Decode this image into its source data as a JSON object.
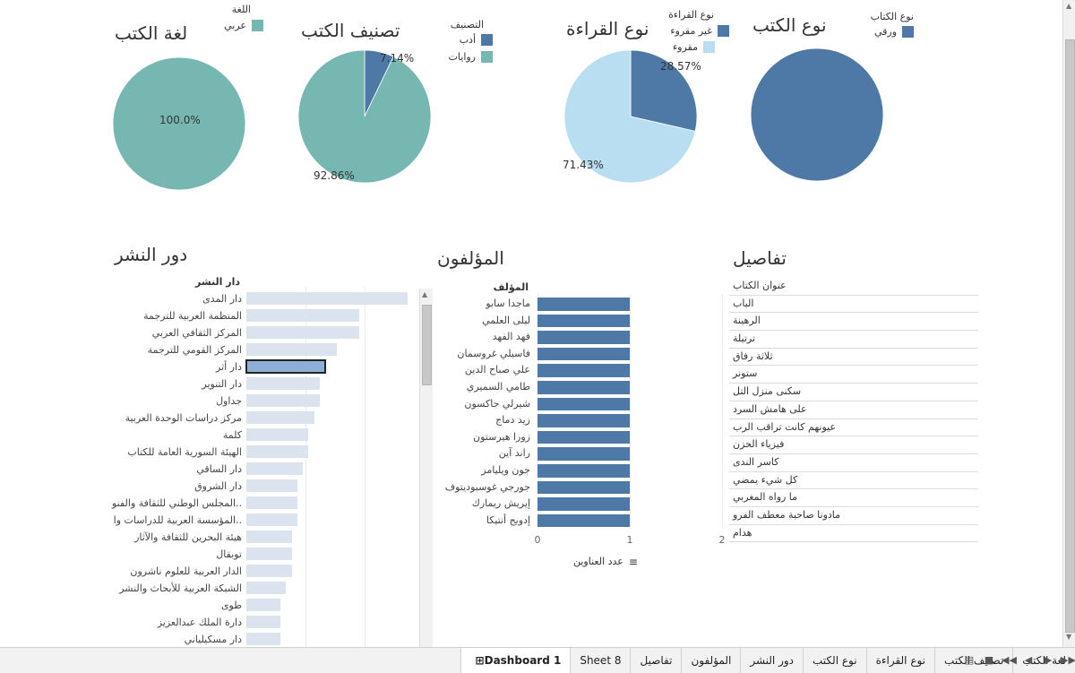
{
  "pies": [
    {
      "title": "لغة الكتب",
      "legend_title": "اللغة",
      "slices": [
        {
          "name": "عربي",
          "value": 100.0,
          "color": "#76b7b2",
          "label": "100.0%"
        }
      ]
    },
    {
      "title": "تصنيف الكتب",
      "legend_title": "التصنيف",
      "slices": [
        {
          "name": "أدب",
          "value": 7.14,
          "color": "#4e79a7",
          "label": "7.14%"
        },
        {
          "name": "روايات",
          "value": 92.86,
          "color": "#76b7b2",
          "label": "92.86%"
        }
      ]
    },
    {
      "title": "نوع القراءة",
      "legend_title": "نوع القراءة",
      "slices": [
        {
          "name": "غير مقروء",
          "value": 28.57,
          "color": "#4e79a7",
          "label": "28.57%"
        },
        {
          "name": "مقروء",
          "value": 71.43,
          "color": "#b9ddf1",
          "label": "71.43%"
        }
      ]
    },
    {
      "title": "نوع الكتب",
      "legend_title": "نوع الكتاب",
      "slices": [
        {
          "name": "ورقي",
          "value": 100.0,
          "color": "#4e79a7",
          "label": ""
        }
      ]
    }
  ],
  "publishers": {
    "title": "دور النشر",
    "header": "دار النشر",
    "items": [
      {
        "name": "دار المدى",
        "value": 5.7
      },
      {
        "name": "المنظمة العربية للترجمة",
        "value": 4.0
      },
      {
        "name": "المركز الثقافي العربي",
        "value": 4.0
      },
      {
        "name": "المركز القومي للترجمة",
        "value": 3.2
      },
      {
        "name": "دار أثر",
        "value": 2.8
      },
      {
        "name": "دار التنوير",
        "value": 2.6
      },
      {
        "name": "جداول",
        "value": 2.6
      },
      {
        "name": "مركز دراسات الوحدة العربية",
        "value": 2.4
      },
      {
        "name": "كلمة",
        "value": 2.2
      },
      {
        "name": "الهيئة السورية العامة للكتاب",
        "value": 2.2
      },
      {
        "name": "دار الساقي",
        "value": 2.0
      },
      {
        "name": "دار الشروق",
        "value": 1.8
      },
      {
        "name": "المجلس الوطني للثقافة والفنو..",
        "value": 1.8
      },
      {
        "name": "المؤسسة العربية للدراسات وا..",
        "value": 1.8
      },
      {
        "name": "هيئة البحرين للثقافة والآثار",
        "value": 1.6
      },
      {
        "name": "توبقال",
        "value": 1.6
      },
      {
        "name": "الدار العربية للعلوم ناشرون",
        "value": 1.6
      },
      {
        "name": "الشبكة العربية للأبحاث والنشر",
        "value": 1.4
      },
      {
        "name": "طوى",
        "value": 1.2
      },
      {
        "name": "دارة الملك عبدالعزيز",
        "value": 1.2
      },
      {
        "name": "دار مسكيلياني",
        "value": 1.2
      }
    ],
    "max": 5.7,
    "selected": "دار أثر"
  },
  "authors": {
    "title": "المؤلفون",
    "header": "المؤلف",
    "xlabel": "عدد العناوين",
    "ticks": [
      "0",
      "1",
      "2"
    ],
    "xmax": 2,
    "items": [
      {
        "name": "ماجدا سابو",
        "value": 1
      },
      {
        "name": "ليلى العلمي",
        "value": 1
      },
      {
        "name": "فهد الفهد",
        "value": 1
      },
      {
        "name": "فاسيلي غروسمان",
        "value": 1
      },
      {
        "name": "علي صباح الدين",
        "value": 1
      },
      {
        "name": "طامي السميري",
        "value": 1
      },
      {
        "name": "شيرلي جاكسون",
        "value": 1
      },
      {
        "name": "زيد دماج",
        "value": 1
      },
      {
        "name": "زورا هيرستون",
        "value": 1
      },
      {
        "name": "راند آين",
        "value": 1
      },
      {
        "name": "جون ويليامز",
        "value": 1
      },
      {
        "name": "جورجي غوسبوديتوف",
        "value": 1
      },
      {
        "name": "إيريش ريمارك",
        "value": 1
      },
      {
        "name": "إدويج أنتيكا",
        "value": 1
      }
    ]
  },
  "details": {
    "title": "تفاصيل",
    "header": "عنوان الكتاب",
    "items": [
      "الباب",
      "الرهينة",
      "ترتيلة",
      "ثلاثة رفاق",
      "ستونر",
      "سكنى منزل التل",
      "على هامش السرد",
      "عيونهم كانت تراقب الرب",
      "فيزياء الحزن",
      "كاسر الندى",
      "كل شيء يمضي",
      "ما رواه المغربي",
      "مادونا صاحبة معطف الفرو",
      "هدام"
    ]
  },
  "tabs": [
    "لغة الكتب",
    "تصنيف الكتب",
    "نوع القراءة",
    "نوع الكتب",
    "دور النشر",
    "المؤلفون",
    "تفاصيل",
    "Sheet 8",
    "Dashboard 1"
  ],
  "active_tab": "Dashboard 1"
}
